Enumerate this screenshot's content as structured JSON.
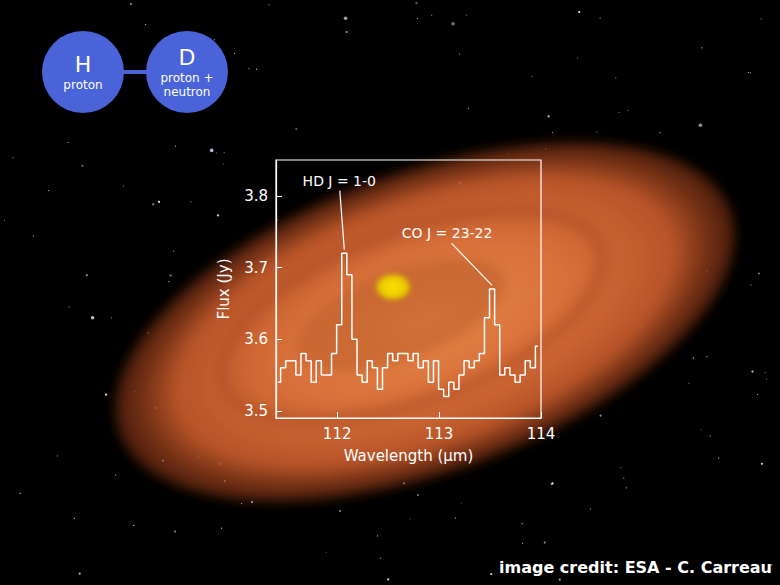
{
  "chart_data": {
    "type": "line",
    "line_style": "step",
    "color": "#ffffff",
    "x_label": "Wavelength (μm)",
    "y_label": "Flux (Jy)",
    "xlim": [
      111.4,
      114
    ],
    "xticks": [
      112,
      113,
      114
    ],
    "ylim": [
      3.49,
      3.85
    ],
    "yticks": [
      3.5,
      3.6,
      3.7,
      3.8
    ],
    "grid": false,
    "x": [
      111.42,
      111.47,
      111.52,
      111.57,
      111.62,
      111.67,
      111.72,
      111.77,
      111.82,
      111.87,
      111.92,
      111.97,
      112.02,
      112.07,
      112.12,
      112.17,
      112.22,
      112.27,
      112.32,
      112.37,
      112.42,
      112.47,
      112.52,
      112.57,
      112.62,
      112.67,
      112.72,
      112.77,
      112.82,
      112.87,
      112.92,
      112.97,
      113.02,
      113.07,
      113.12,
      113.17,
      113.22,
      113.27,
      113.32,
      113.37,
      113.42,
      113.47,
      113.52,
      113.57,
      113.62,
      113.67,
      113.72,
      113.77,
      113.82,
      113.87,
      113.92,
      113.97
    ],
    "values": [
      3.54,
      3.56,
      3.57,
      3.57,
      3.55,
      3.58,
      3.57,
      3.54,
      3.57,
      3.55,
      3.55,
      3.58,
      3.62,
      3.72,
      3.69,
      3.6,
      3.55,
      3.54,
      3.57,
      3.56,
      3.53,
      3.56,
      3.58,
      3.57,
      3.58,
      3.58,
      3.57,
      3.58,
      3.56,
      3.57,
      3.54,
      3.57,
      3.53,
      3.52,
      3.54,
      3.53,
      3.55,
      3.57,
      3.56,
      3.57,
      3.58,
      3.63,
      3.67,
      3.62,
      3.55,
      3.56,
      3.55,
      3.54,
      3.55,
      3.57,
      3.56,
      3.59
    ],
    "annotations": [
      {
        "text": "HD J = 1-0",
        "x": 112.07,
        "y": 3.725
      },
      {
        "text": "CO J = 23-22",
        "x": 113.52,
        "y": 3.675
      }
    ]
  },
  "molecule": {
    "atoms": [
      {
        "symbol": "H",
        "label": "proton"
      },
      {
        "symbol": "D",
        "label": "proton + neutron"
      }
    ]
  },
  "credit": "image credit: ESA - C. Carreau"
}
